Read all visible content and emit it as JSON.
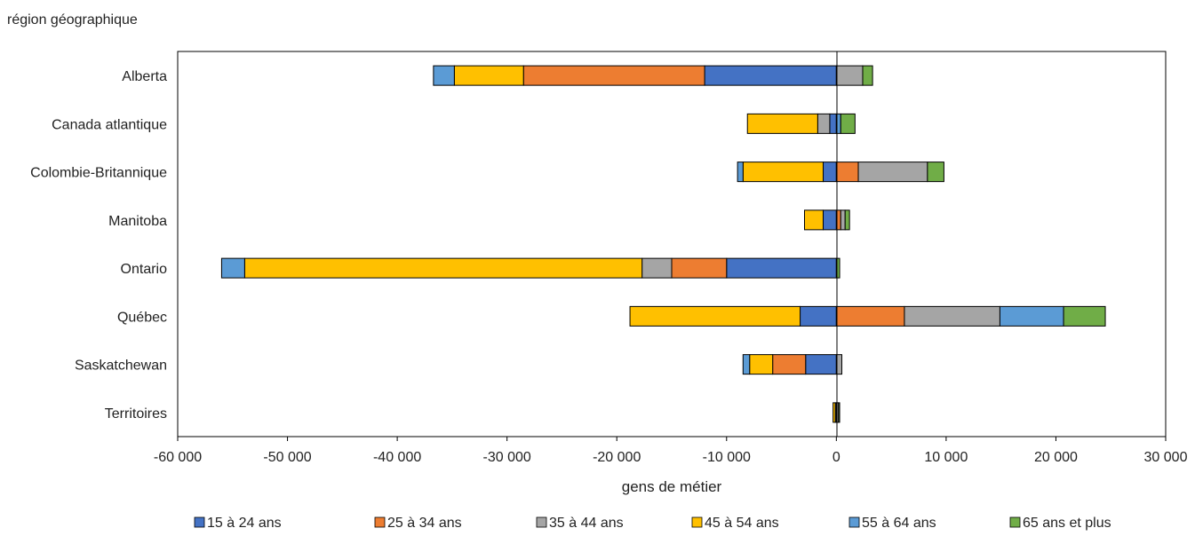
{
  "chart_data": {
    "type": "bar",
    "orientation": "horizontal",
    "stacked": true,
    "ylabel": "région géographique",
    "xlabel": "gens de métier",
    "xlim": [
      -60000,
      30000
    ],
    "x_ticks": [
      -60000,
      -50000,
      -40000,
      -30000,
      -20000,
      -10000,
      0,
      10000,
      20000,
      30000
    ],
    "x_tick_labels": [
      "-60 000",
      "-50 000",
      "-40 000",
      "-30 000",
      "-20 000",
      "-10 000",
      "0",
      "10 000",
      "20 000",
      "30 000"
    ],
    "grid": false,
    "legend_position": "bottom",
    "categories": [
      "Alberta",
      "Canada atlantique",
      "Colombie-Britannique",
      "Manitoba",
      "Ontario",
      "Québec",
      "Saskatchewan",
      "Territoires"
    ],
    "series": [
      {
        "name": "15 à 24 ans",
        "color": "#4472C4",
        "values": [
          -12000,
          -600,
          -1200,
          -1200,
          -10000,
          -3300,
          -2800,
          -100
        ]
      },
      {
        "name": "25 à 34 ans",
        "color": "#ED7D31",
        "values": [
          -16500,
          0,
          2000,
          400,
          -5000,
          6200,
          -3000,
          0
        ]
      },
      {
        "name": "35 à 44 ans",
        "color": "#A5A5A5",
        "values": [
          2400,
          -1100,
          6300,
          400,
          -2700,
          8700,
          500,
          200
        ]
      },
      {
        "name": "45 à 54 ans",
        "color": "#FFC000",
        "values": [
          -6300,
          -6400,
          -7300,
          -1700,
          -36200,
          -15500,
          -2100,
          -200
        ]
      },
      {
        "name": "55 à 64 ans",
        "color": "#5B9BD5",
        "values": [
          -1900,
          400,
          -500,
          0,
          -2100,
          5800,
          -600,
          0
        ]
      },
      {
        "name": "65 ans et plus",
        "color": "#70AD47",
        "values": [
          900,
          1300,
          1500,
          400,
          300,
          3800,
          0,
          100
        ]
      }
    ]
  }
}
